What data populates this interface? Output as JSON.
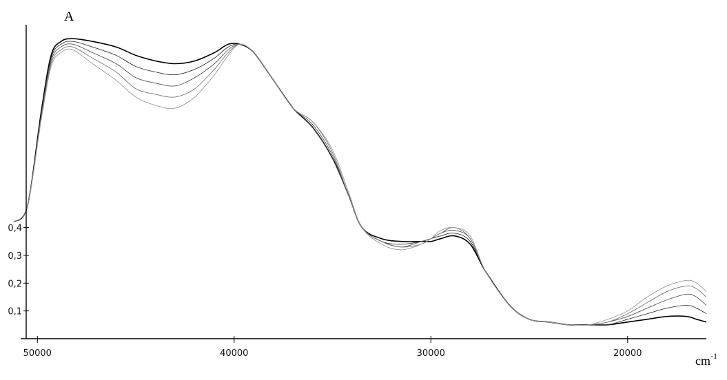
{
  "chart_data": {
    "type": "line",
    "ylabel": "A",
    "xunit": "cm",
    "xunit_power": "-1",
    "x_reversed": true,
    "xlim": [
      51200,
      16000
    ],
    "ylim": [
      0,
      1.13
    ],
    "x_ticks": [
      {
        "value": 50000,
        "label": "50000"
      },
      {
        "value": 40000,
        "label": "40000"
      },
      {
        "value": 30000,
        "label": "30000"
      },
      {
        "value": 20000,
        "label": "20000"
      }
    ],
    "y_ticks": [
      {
        "value": 0.1,
        "label": "0,1"
      },
      {
        "value": 0.2,
        "label": "0,2"
      },
      {
        "value": 0.3,
        "label": "0,3"
      },
      {
        "value": 0.4,
        "label": "0,4"
      }
    ],
    "grid": false,
    "legend": "none",
    "x": [
      51200,
      50500,
      49800,
      49300,
      48800,
      48200,
      47200,
      46000,
      45000,
      44000,
      43000,
      42000,
      41000,
      40300,
      39700,
      39000,
      38000,
      37000,
      36000,
      35000,
      34200,
      33500,
      32500,
      31500,
      30500,
      30000,
      29500,
      28800,
      28000,
      27200,
      26000,
      25000,
      24000,
      23000,
      22000,
      21000,
      20000,
      19000,
      18000,
      17000,
      16500,
      16000
    ],
    "series": [
      {
        "color": "#000000",
        "values": [
          0.42,
          0.48,
          0.82,
          1.02,
          1.07,
          1.08,
          1.07,
          1.05,
          1.02,
          1.0,
          0.99,
          1.0,
          1.03,
          1.06,
          1.06,
          1.03,
          0.93,
          0.83,
          0.76,
          0.65,
          0.52,
          0.4,
          0.36,
          0.35,
          0.35,
          0.35,
          0.36,
          0.37,
          0.34,
          0.24,
          0.12,
          0.07,
          0.06,
          0.05,
          0.05,
          0.05,
          0.06,
          0.07,
          0.08,
          0.08,
          0.07,
          0.06
        ]
      },
      {
        "color": "#333333",
        "values": [
          0.42,
          0.48,
          0.81,
          1.01,
          1.06,
          1.07,
          1.05,
          1.02,
          0.98,
          0.96,
          0.95,
          0.97,
          1.01,
          1.05,
          1.06,
          1.03,
          0.93,
          0.83,
          0.76,
          0.65,
          0.52,
          0.4,
          0.35,
          0.34,
          0.35,
          0.36,
          0.37,
          0.38,
          0.35,
          0.24,
          0.12,
          0.07,
          0.06,
          0.05,
          0.05,
          0.05,
          0.07,
          0.09,
          0.11,
          0.12,
          0.11,
          0.09
        ]
      },
      {
        "color": "#555555",
        "values": [
          0.42,
          0.48,
          0.8,
          1.0,
          1.05,
          1.06,
          1.03,
          0.99,
          0.94,
          0.92,
          0.91,
          0.94,
          0.99,
          1.04,
          1.06,
          1.03,
          0.93,
          0.83,
          0.77,
          0.66,
          0.52,
          0.4,
          0.35,
          0.33,
          0.35,
          0.36,
          0.38,
          0.39,
          0.36,
          0.24,
          0.12,
          0.07,
          0.06,
          0.05,
          0.05,
          0.06,
          0.08,
          0.11,
          0.14,
          0.16,
          0.15,
          0.12
        ]
      },
      {
        "color": "#777777",
        "values": [
          0.42,
          0.48,
          0.8,
          0.99,
          1.04,
          1.05,
          1.01,
          0.96,
          0.9,
          0.88,
          0.87,
          0.9,
          0.97,
          1.03,
          1.06,
          1.03,
          0.93,
          0.83,
          0.78,
          0.67,
          0.52,
          0.4,
          0.35,
          0.33,
          0.34,
          0.36,
          0.38,
          0.4,
          0.36,
          0.24,
          0.12,
          0.07,
          0.06,
          0.05,
          0.05,
          0.06,
          0.09,
          0.13,
          0.17,
          0.19,
          0.18,
          0.15
        ]
      },
      {
        "color": "#999999",
        "values": [
          0.42,
          0.48,
          0.79,
          0.98,
          1.03,
          1.04,
          0.99,
          0.93,
          0.87,
          0.84,
          0.83,
          0.87,
          0.95,
          1.02,
          1.06,
          1.03,
          0.93,
          0.83,
          0.78,
          0.68,
          0.53,
          0.4,
          0.34,
          0.32,
          0.34,
          0.36,
          0.39,
          0.4,
          0.37,
          0.24,
          0.12,
          0.07,
          0.06,
          0.05,
          0.05,
          0.07,
          0.1,
          0.15,
          0.19,
          0.21,
          0.2,
          0.17
        ]
      }
    ]
  }
}
